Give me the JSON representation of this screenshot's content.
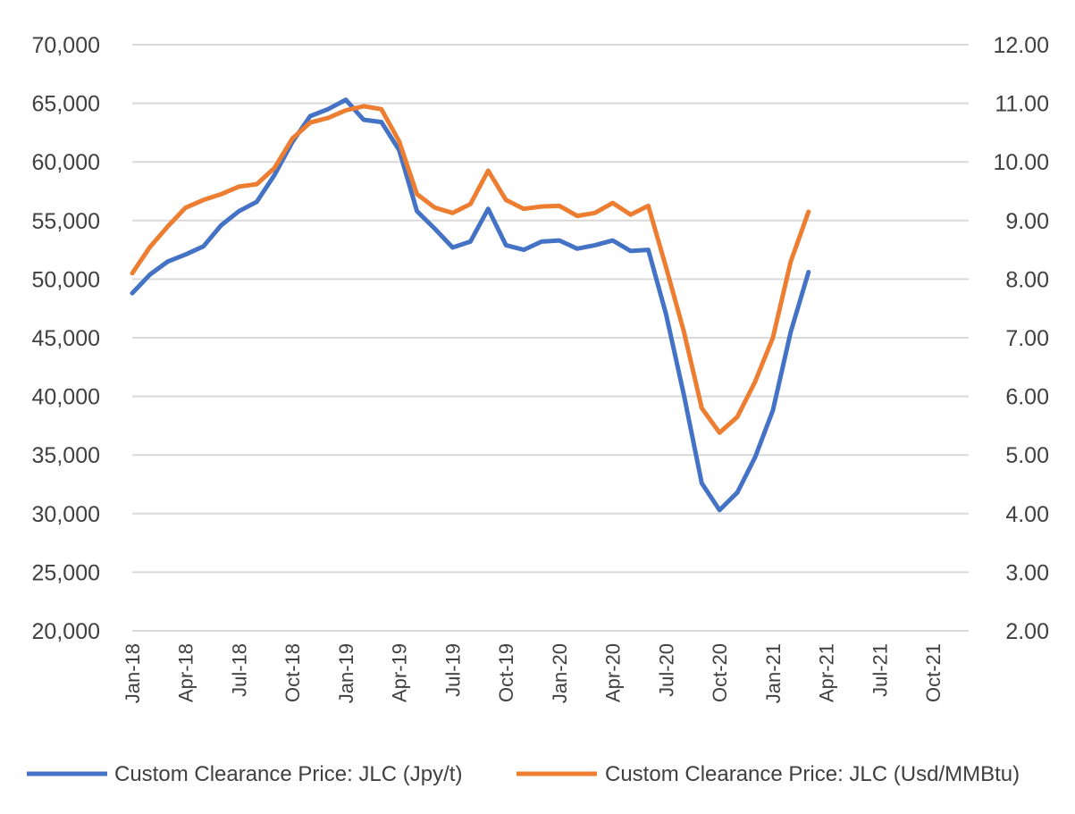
{
  "chart_data": {
    "type": "line",
    "title": "",
    "x_ticks": [
      "Jan-18",
      "Apr-18",
      "Jul-18",
      "Oct-18",
      "Jan-19",
      "Apr-19",
      "Jul-19",
      "Oct-19",
      "Jan-20",
      "Apr-20",
      "Jul-20",
      "Oct-20",
      "Jan-21",
      "Apr-21",
      "Jul-21",
      "Oct-21"
    ],
    "x_range_months": [
      0,
      47
    ],
    "left_axis": {
      "min": 20000,
      "max": 70000,
      "step": 5000,
      "tick_labels": [
        "20,000",
        "25,000",
        "30,000",
        "35,000",
        "40,000",
        "45,000",
        "50,000",
        "55,000",
        "60,000",
        "65,000",
        "70,000"
      ]
    },
    "right_axis": {
      "min": 2.0,
      "max": 12.0,
      "step": 1.0,
      "tick_labels": [
        "2.00",
        "3.00",
        "4.00",
        "5.00",
        "6.00",
        "7.00",
        "8.00",
        "9.00",
        "10.00",
        "11.00",
        "12.00"
      ]
    },
    "grid": true,
    "legend_position": "bottom",
    "series": [
      {
        "name": "Custom Clearance Price: JLC (Jpy/t)",
        "color": "#4472C4",
        "axis": "left",
        "values": [
          48800,
          50400,
          51500,
          52100,
          52800,
          54600,
          55800,
          56600,
          58900,
          61700,
          63900,
          64500,
          65300,
          63600,
          63400,
          61000,
          55800,
          54300,
          52700,
          53200,
          56000,
          52900,
          52500,
          53200,
          53300,
          52600,
          52900,
          53300,
          52400,
          52500,
          47000,
          40100,
          32600,
          30300,
          31800,
          34800,
          38800,
          45500,
          50600
        ]
      },
      {
        "name": "Custom Clearance Price: JLC (Usd/MMBtu)",
        "color": "#ED7D31",
        "axis": "right",
        "values": [
          8.1,
          8.55,
          8.9,
          9.22,
          9.35,
          9.45,
          9.58,
          9.62,
          9.9,
          10.4,
          10.67,
          10.75,
          10.88,
          10.95,
          10.9,
          10.35,
          9.45,
          9.22,
          9.13,
          9.28,
          9.85,
          9.35,
          9.2,
          9.24,
          9.25,
          9.08,
          9.13,
          9.3,
          9.1,
          9.25,
          8.2,
          7.1,
          5.8,
          5.38,
          5.65,
          6.25,
          7.0,
          8.3,
          9.15
        ]
      }
    ]
  }
}
